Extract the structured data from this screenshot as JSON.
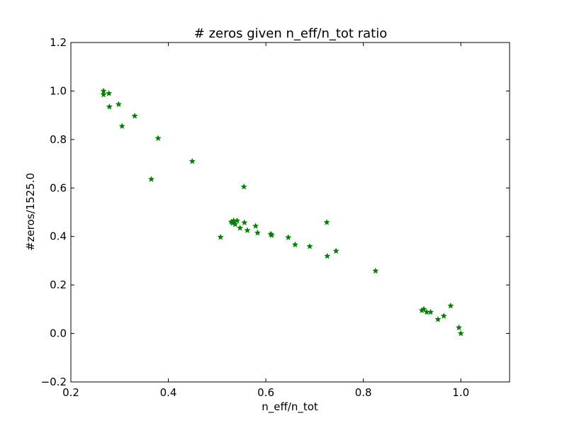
{
  "chart_data": {
    "type": "scatter",
    "title": "# zeros given n_eff/n_tot ratio",
    "xlabel": "n_eff/n_tot",
    "ylabel": "#zeros/1525.0",
    "xlim": [
      0.2,
      1.1
    ],
    "ylim": [
      -0.2,
      1.2
    ],
    "xticks": [
      0.2,
      0.4,
      0.6,
      0.8,
      1.0
    ],
    "xtick_labels": [
      "0.2",
      "0.4",
      "0.6",
      "0.8",
      "1.0"
    ],
    "yticks": [
      -0.2,
      0.0,
      0.2,
      0.4,
      0.6,
      0.8,
      1.0,
      1.2
    ],
    "ytick_labels": [
      "−0.2",
      "0.0",
      "0.2",
      "0.4",
      "0.6",
      "0.8",
      "1.0",
      "1.2"
    ],
    "grid": false,
    "marker": "star",
    "color": "#008000",
    "series": [
      {
        "points": [
          [
            0.267,
            1.0
          ],
          [
            0.267,
            0.985
          ],
          [
            0.278,
            0.99
          ],
          [
            0.279,
            0.935
          ],
          [
            0.298,
            0.945
          ],
          [
            0.305,
            0.855
          ],
          [
            0.331,
            0.897
          ],
          [
            0.365,
            0.636
          ],
          [
            0.379,
            0.805
          ],
          [
            0.449,
            0.71
          ],
          [
            0.507,
            0.397
          ],
          [
            0.529,
            0.46
          ],
          [
            0.532,
            0.455
          ],
          [
            0.534,
            0.465
          ],
          [
            0.537,
            0.45
          ],
          [
            0.541,
            0.465
          ],
          [
            0.547,
            0.435
          ],
          [
            0.555,
            0.605
          ],
          [
            0.556,
            0.457
          ],
          [
            0.562,
            0.425
          ],
          [
            0.579,
            0.443
          ],
          [
            0.583,
            0.415
          ],
          [
            0.61,
            0.41
          ],
          [
            0.612,
            0.405
          ],
          [
            0.646,
            0.396
          ],
          [
            0.66,
            0.366
          ],
          [
            0.69,
            0.359
          ],
          [
            0.725,
            0.458
          ],
          [
            0.726,
            0.319
          ],
          [
            0.744,
            0.34
          ],
          [
            0.825,
            0.258
          ],
          [
            0.92,
            0.095
          ],
          [
            0.924,
            0.1
          ],
          [
            0.93,
            0.088
          ],
          [
            0.938,
            0.088
          ],
          [
            0.953,
            0.058
          ],
          [
            0.965,
            0.072
          ],
          [
            0.979,
            0.114
          ],
          [
            0.996,
            0.024
          ],
          [
            1.0,
            0.0
          ]
        ]
      }
    ]
  }
}
